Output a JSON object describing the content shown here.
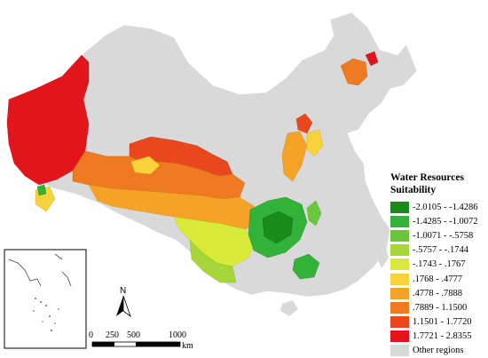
{
  "legend": {
    "title_line1": "Water Resources",
    "title_line2": "Suitability",
    "items": [
      {
        "label": "-2.0105 - -1.4286",
        "color": "#1a8a1a"
      },
      {
        "label": "-1.4285 - -1.0072",
        "color": "#33b23a"
      },
      {
        "label": "-1.0071 - -.5758",
        "color": "#6cc63a"
      },
      {
        "label": "-.5757 - -.1744",
        "color": "#a6d63a"
      },
      {
        "label": "-.1743 - .1767",
        "color": "#d9ea3a"
      },
      {
        "label": ".1768 - .4777",
        "color": "#f7d23a"
      },
      {
        "label": ".4778 - .7888",
        "color": "#f5a228"
      },
      {
        "label": ".7889 - 1.1500",
        "color": "#ee7a22"
      },
      {
        "label": "1.1501 - 1.7720",
        "color": "#e9471e"
      },
      {
        "label": "1.7721 - 2.8355",
        "color": "#e2141c"
      },
      {
        "label": "Other regions",
        "color": "#d9d9d9"
      }
    ]
  },
  "north_arrow": {
    "label": "N"
  },
  "scale_bar": {
    "ticks": [
      "0",
      "250",
      "500",
      "1000"
    ],
    "unit": "km"
  }
}
